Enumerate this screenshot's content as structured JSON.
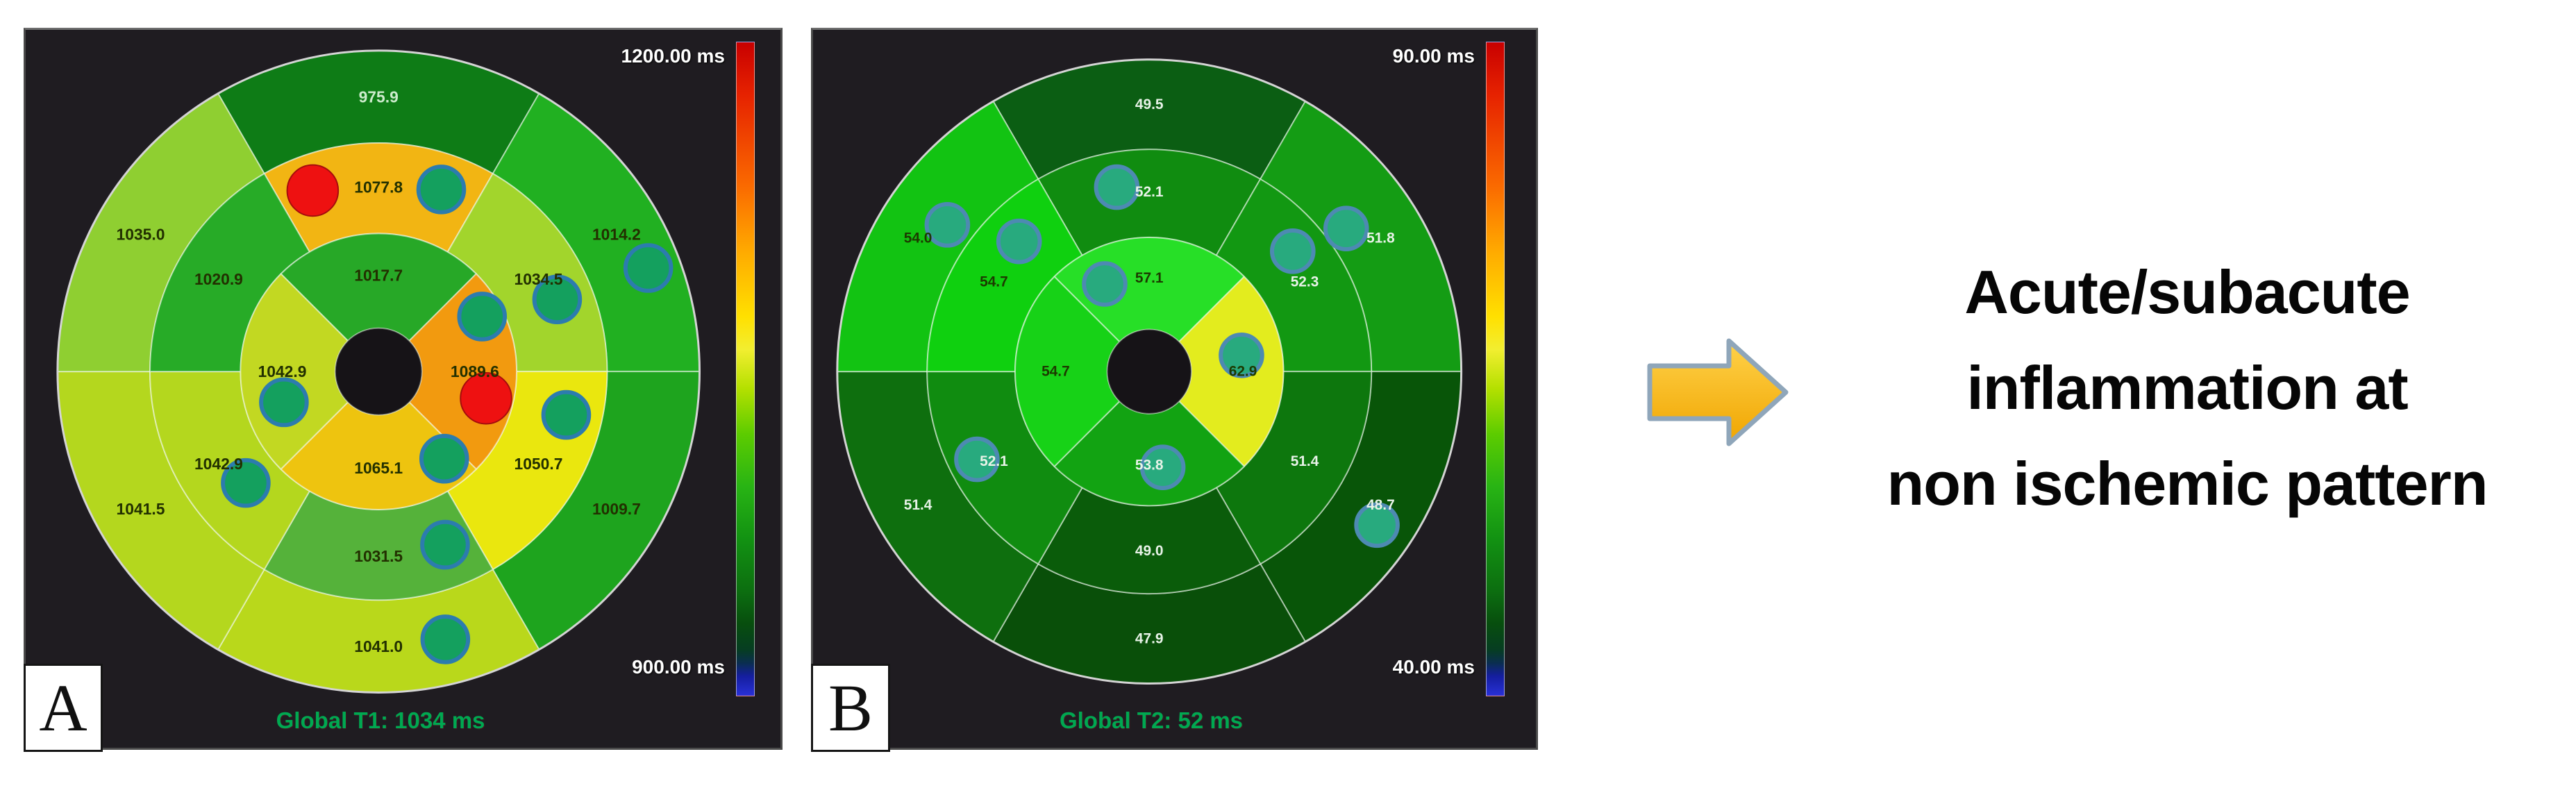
{
  "conclusion": {
    "lines": [
      "Acute/subacute",
      "inflammation at",
      "non ischemic pattern"
    ]
  },
  "arrow": {
    "fill_top": "#ffd24a",
    "fill_bottom": "#f0a500",
    "stroke": "#8fa6ba"
  },
  "colorbar_gradient": [
    "#c80000 0%",
    "#e62200 8%",
    "#fa6a00 22%",
    "#ffaa00 32%",
    "#ffe000 42%",
    "#f2ee30 47%",
    "#b4e000 53%",
    "#5ccc00 60%",
    "#28b414 68%",
    "#129212 76%",
    "#0c6e10 84%",
    "#074e0e 89%",
    "#063d22 93%",
    "#0a2e50 95%",
    "#141e9e 97%",
    "#2830d8 100%"
  ],
  "chart_data": [
    {
      "id": "t1-polar-map",
      "type": "heatmap",
      "subtype": "aha-17-segment-bullseye-polar-map",
      "panel_label": "A",
      "title": "Global T1: 1034 ms",
      "units": "ms",
      "scale": {
        "min": 900,
        "max": 1200,
        "min_label": "900.00 ms",
        "max_label": "1200.00 ms"
      },
      "segment_order": "clockwise-from-top",
      "rings": {
        "outer": [
          {
            "v": "975.9",
            "c": "#0e7c16",
            "light": true
          },
          {
            "v": "1014.2",
            "c": "#21b021",
            "light": false
          },
          {
            "v": "1009.7",
            "c": "#1ea41e",
            "light": false
          },
          {
            "v": "1041.0",
            "c": "#b9d81b",
            "light": false
          },
          {
            "v": "1041.5",
            "c": "#b4d71e",
            "light": false
          },
          {
            "v": "1035.0",
            "c": "#8fcf31",
            "light": false
          }
        ],
        "mid": [
          {
            "v": "1077.8",
            "c": "#f2b513",
            "light": false
          },
          {
            "v": "1034.5",
            "c": "#a2d52c",
            "light": false
          },
          {
            "v": "1050.7",
            "c": "#eae70e",
            "light": false
          },
          {
            "v": "1031.5",
            "c": "#55b23a",
            "light": false
          },
          {
            "v": "1042.9",
            "c": "#b4d71e",
            "light": false
          },
          {
            "v": "1020.9",
            "c": "#27ab27",
            "light": false
          }
        ],
        "apical": [
          {
            "v": "1017.7",
            "c": "#27a827",
            "light": false
          },
          {
            "v": "1089.6",
            "c": "#f29a0f",
            "light": false
          },
          {
            "v": "1065.1",
            "c": "#eec40f",
            "light": false
          },
          {
            "v": "1042.9",
            "c": "#c2d822",
            "light": false
          }
        ]
      },
      "markers": [
        {
          "ring": "outer",
          "angle": 69,
          "r": 0.9,
          "type": "teal"
        },
        {
          "ring": "outer",
          "angle": 166,
          "r": 0.86,
          "type": "teal"
        },
        {
          "ring": "mid",
          "angle": -20,
          "r": 0.6,
          "type": "red"
        },
        {
          "ring": "mid",
          "angle": 19,
          "r": 0.6,
          "type": "teal"
        },
        {
          "ring": "mid",
          "angle": 68,
          "r": 0.6,
          "type": "teal"
        },
        {
          "ring": "mid",
          "angle": 103,
          "r": 0.6,
          "type": "teal"
        },
        {
          "ring": "mid",
          "angle": 159,
          "r": 0.578,
          "type": "teal"
        },
        {
          "ring": "mid",
          "angle": 230,
          "r": 0.54,
          "type": "teal"
        },
        {
          "ring": "apical",
          "angle": 62,
          "r": 0.365,
          "type": "teal"
        },
        {
          "ring": "apical",
          "angle": 104,
          "r": 0.345,
          "type": "red"
        },
        {
          "ring": "apical",
          "angle": 143,
          "r": 0.34,
          "type": "teal"
        },
        {
          "ring": "apical",
          "angle": 252,
          "r": 0.31,
          "type": "teal"
        }
      ],
      "marker_styles": {
        "teal": {
          "fill": "#14a05e",
          "stroke": "#2c7cae",
          "r": 33,
          "sw": 6
        },
        "red": {
          "fill": "#ee1111",
          "stroke": "#a50d0d",
          "r": 37,
          "sw": 2
        }
      },
      "label_colors": {
        "dark": "#223000",
        "light": "#cdeccd"
      }
    },
    {
      "id": "t2-polar-map",
      "type": "heatmap",
      "subtype": "aha-17-segment-bullseye-polar-map",
      "panel_label": "B",
      "title": "Global T2: 52 ms",
      "units": "ms",
      "scale": {
        "min": 40,
        "max": 90,
        "min_label": "40.00 ms",
        "max_label": "90.00 ms"
      },
      "segment_order": "clockwise-from-top",
      "rings": {
        "outer": [
          {
            "v": "49.5",
            "c": "#0b5e13",
            "light": true
          },
          {
            "v": "51.8",
            "c": "#149c14",
            "light": true
          },
          {
            "v": "48.7",
            "c": "#085508",
            "light": true
          },
          {
            "v": "47.9",
            "c": "#094f09",
            "light": true
          },
          {
            "v": "51.4",
            "c": "#0e6f0e",
            "light": true
          },
          {
            "v": "54.0",
            "c": "#12c312",
            "light": false
          }
        ],
        "mid": [
          {
            "v": "52.1",
            "c": "#108c10",
            "light": true
          },
          {
            "v": "52.3",
            "c": "#129812",
            "light": true
          },
          {
            "v": "51.4",
            "c": "#0d770d",
            "light": true
          },
          {
            "v": "49.0",
            "c": "#0a5c0a",
            "light": true
          },
          {
            "v": "52.1",
            "c": "#108c10",
            "light": true
          },
          {
            "v": "54.7",
            "c": "#0fd00f",
            "light": false
          }
        ],
        "apical": [
          {
            "v": "57.1",
            "c": "#27df27",
            "light": false
          },
          {
            "v": "62.9",
            "c": "#e3ec1e",
            "light": false
          },
          {
            "v": "53.8",
            "c": "#12a312",
            "light": true
          },
          {
            "v": "54.7",
            "c": "#17d217",
            "light": false
          }
        ]
      },
      "markers": [
        {
          "ring": "outer",
          "angle": 306,
          "r": 0.8,
          "type": "teal"
        },
        {
          "ring": "outer",
          "angle": 54,
          "r": 0.78,
          "type": "teal"
        },
        {
          "ring": "outer",
          "angle": 124,
          "r": 0.88,
          "type": "teal"
        },
        {
          "ring": "mid",
          "angle": 315,
          "r": 0.59,
          "type": "teal"
        },
        {
          "ring": "mid",
          "angle": -10,
          "r": 0.6,
          "type": "teal"
        },
        {
          "ring": "mid",
          "angle": 50,
          "r": 0.6,
          "type": "teal"
        },
        {
          "ring": "mid",
          "angle": 243,
          "r": 0.62,
          "type": "teal"
        },
        {
          "ring": "apical",
          "angle": -27,
          "r": 0.315,
          "type": "teal"
        },
        {
          "ring": "apical",
          "angle": 80,
          "r": 0.3,
          "type": "teal"
        },
        {
          "ring": "apical",
          "angle": 172,
          "r": 0.31,
          "type": "teal"
        }
      ],
      "marker_styles": {
        "teal": {
          "fill": "#28aa7e",
          "stroke": "#4d8ab2",
          "r": 30,
          "sw": 6
        }
      },
      "label_colors": {
        "dark": "#1c3a00",
        "light": "#e8f3e8"
      }
    }
  ]
}
